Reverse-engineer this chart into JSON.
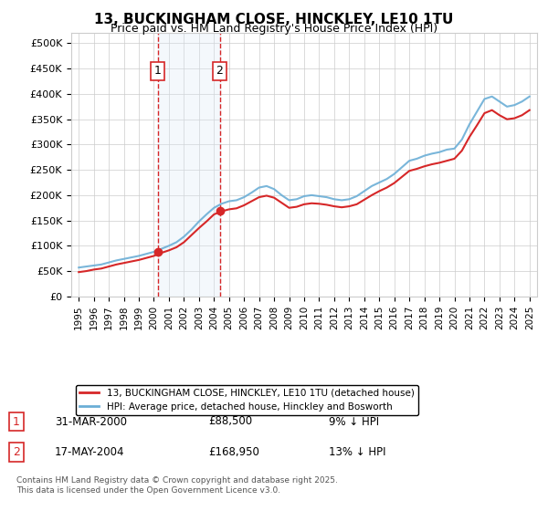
{
  "title": "13, BUCKINGHAM CLOSE, HINCKLEY, LE10 1TU",
  "subtitle": "Price paid vs. HM Land Registry's House Price Index (HPI)",
  "legend_line1": "13, BUCKINGHAM CLOSE, HINCKLEY, LE10 1TU (detached house)",
  "legend_line2": "HPI: Average price, detached house, Hinckley and Bosworth",
  "transaction1_date": "31-MAR-2000",
  "transaction1_price": "£88,500",
  "transaction1_hpi": "9% ↓ HPI",
  "transaction1_year": 2000.25,
  "transaction1_price_val": 88500,
  "transaction2_date": "17-MAY-2004",
  "transaction2_price": "£168,950",
  "transaction2_hpi": "13% ↓ HPI",
  "transaction2_year": 2004.38,
  "transaction2_price_val": 168950,
  "footnote": "Contains HM Land Registry data © Crown copyright and database right 2025.\nThis data is licensed under the Open Government Licence v3.0.",
  "hpi_color": "#6baed6",
  "price_color": "#d62728",
  "highlight_color": "#dbeaf7",
  "ylim_max": 520000,
  "yticks": [
    0,
    50000,
    100000,
    150000,
    200000,
    250000,
    300000,
    350000,
    400000,
    450000,
    500000
  ],
  "xlim_start": 1994.5,
  "xlim_end": 2025.5,
  "background_color": "#ffffff",
  "grid_color": "#cccccc",
  "years_hpi": [
    1995.0,
    1995.5,
    1996.0,
    1996.5,
    1997.0,
    1997.5,
    1998.0,
    1998.5,
    1999.0,
    1999.5,
    2000.0,
    2000.5,
    2001.0,
    2001.5,
    2002.0,
    2002.5,
    2003.0,
    2003.5,
    2004.0,
    2004.5,
    2005.0,
    2005.5,
    2006.0,
    2006.5,
    2007.0,
    2007.5,
    2008.0,
    2008.5,
    2009.0,
    2009.5,
    2010.0,
    2010.5,
    2011.0,
    2011.5,
    2012.0,
    2012.5,
    2013.0,
    2013.5,
    2014.0,
    2014.5,
    2015.0,
    2015.5,
    2016.0,
    2016.5,
    2017.0,
    2017.5,
    2018.0,
    2018.5,
    2019.0,
    2019.5,
    2020.0,
    2020.5,
    2021.0,
    2021.5,
    2022.0,
    2022.5,
    2023.0,
    2023.5,
    2024.0,
    2024.5,
    2025.0
  ],
  "hpi_values": [
    57000,
    59000,
    61000,
    63000,
    67000,
    71000,
    74000,
    77000,
    80000,
    84000,
    88000,
    94000,
    100000,
    107000,
    118000,
    132000,
    148000,
    162000,
    175000,
    183000,
    188000,
    190000,
    196000,
    205000,
    215000,
    218000,
    212000,
    200000,
    190000,
    192000,
    198000,
    200000,
    198000,
    196000,
    192000,
    190000,
    192000,
    198000,
    208000,
    218000,
    225000,
    232000,
    242000,
    255000,
    268000,
    272000,
    278000,
    282000,
    285000,
    290000,
    292000,
    310000,
    340000,
    365000,
    390000,
    395000,
    385000,
    375000,
    378000,
    385000,
    395000
  ],
  "price_line": [
    48000,
    50000,
    53000,
    55000,
    59000,
    63000,
    66000,
    69000,
    72000,
    76000,
    80000,
    86000,
    91000,
    97000,
    107000,
    121000,
    135000,
    148000,
    162000,
    168000,
    172000,
    174000,
    180000,
    188000,
    196000,
    199000,
    195000,
    185000,
    175000,
    177000,
    182000,
    184000,
    183000,
    181000,
    178000,
    176000,
    178000,
    182000,
    191000,
    200000,
    208000,
    215000,
    224000,
    236000,
    248000,
    252000,
    257000,
    261000,
    264000,
    268000,
    272000,
    288000,
    315000,
    338000,
    362000,
    368000,
    358000,
    350000,
    352000,
    358000,
    368000
  ]
}
